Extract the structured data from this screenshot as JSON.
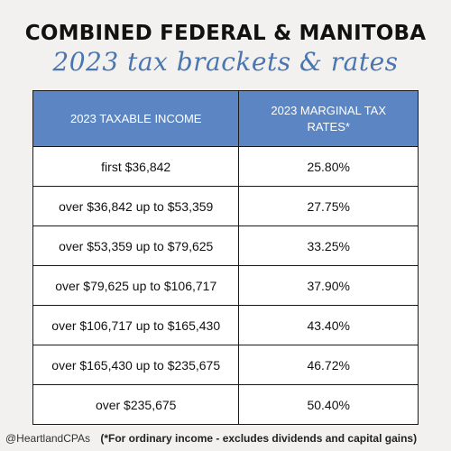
{
  "title": "COMBINED FEDERAL & MANITOBA",
  "subtitle": "2023 tax brackets & rates",
  "table": {
    "headers": [
      "2023 TAXABLE INCOME",
      "2023 MARGINAL TAX RATES*"
    ],
    "rows": [
      [
        "first $36,842",
        "25.80%"
      ],
      [
        "over $36,842 up to $53,359",
        "27.75%"
      ],
      [
        "over $53,359 up to $79,625",
        "33.25%"
      ],
      [
        "over $79,625 up to $106,717",
        "37.90%"
      ],
      [
        "over $106,717 up to $165,430",
        "43.40%"
      ],
      [
        "over $165,430 up to $235,675",
        "46.72%"
      ],
      [
        "over $235,675",
        "50.40%"
      ]
    ]
  },
  "footer": {
    "handle": "@HeartlandCPAs",
    "note": "(*For ordinary income - excludes dividends and capital gains)"
  },
  "colors": {
    "header_bg": "#5b86c3",
    "subtitle": "#4a76b0",
    "background": "#f3f1ef"
  }
}
